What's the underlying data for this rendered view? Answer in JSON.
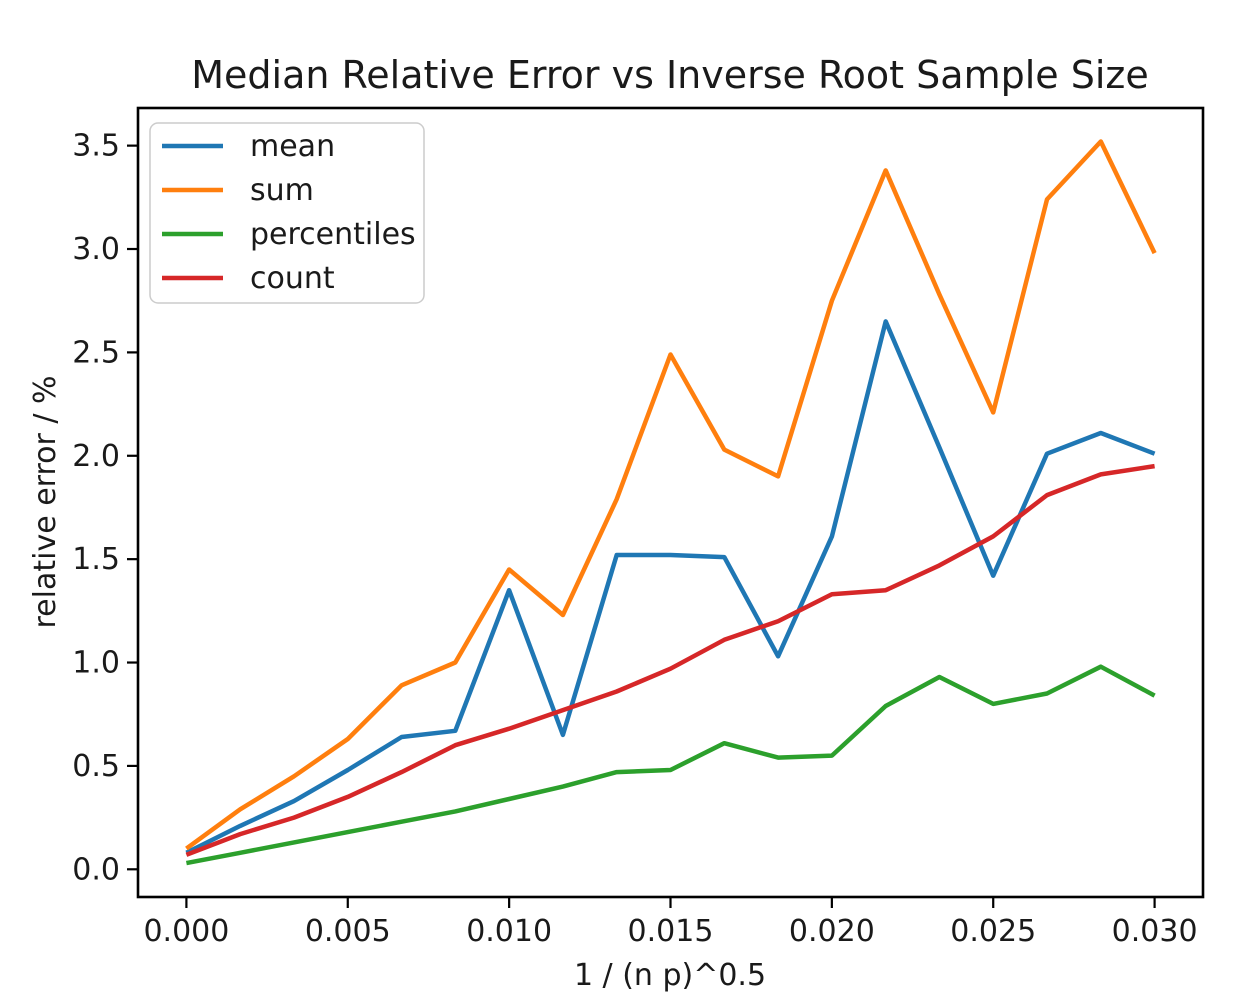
{
  "chart_data": {
    "type": "line",
    "title": "Median Relative Error vs Inverse Root Sample Size",
    "xlabel": "1 / (n p)^0.5",
    "ylabel": "relative error / %",
    "x": [
      0,
      0.0016667,
      0.0033333,
      0.005,
      0.0066667,
      0.0083333,
      0.01,
      0.0116667,
      0.0133333,
      0.015,
      0.0166667,
      0.0183333,
      0.02,
      0.0216667,
      0.0233333,
      0.025,
      0.0266667,
      0.0283333,
      0.03
    ],
    "series": [
      {
        "name": "mean",
        "color": "#1f77b4",
        "values": [
          0.08,
          0.21,
          0.33,
          0.48,
          0.64,
          0.67,
          1.35,
          0.65,
          1.52,
          1.52,
          1.51,
          1.03,
          1.61,
          2.65,
          2.04,
          1.42,
          2.01,
          2.11,
          2.01
        ]
      },
      {
        "name": "sum",
        "color": "#ff7f0e",
        "values": [
          0.1,
          0.29,
          0.45,
          0.63,
          0.89,
          1.0,
          1.45,
          1.23,
          1.79,
          2.49,
          2.03,
          1.9,
          2.75,
          3.38,
          2.78,
          2.21,
          3.24,
          3.52,
          2.98
        ]
      },
      {
        "name": "percentiles",
        "color": "#2ca02c",
        "values": [
          0.03,
          0.08,
          0.13,
          0.18,
          0.23,
          0.28,
          0.34,
          0.4,
          0.47,
          0.48,
          0.61,
          0.54,
          0.55,
          0.79,
          0.93,
          0.8,
          0.85,
          0.98,
          0.84
        ]
      },
      {
        "name": "count",
        "color": "#d62728",
        "values": [
          0.07,
          0.17,
          0.25,
          0.35,
          0.47,
          0.6,
          0.68,
          0.77,
          0.86,
          0.97,
          1.11,
          1.2,
          1.33,
          1.35,
          1.47,
          1.61,
          1.81,
          1.91,
          1.95
        ]
      }
    ],
    "xticks": {
      "values": [
        0,
        0.005,
        0.01,
        0.015,
        0.02,
        0.025,
        0.03
      ],
      "labels": [
        "0.000",
        "0.005",
        "0.010",
        "0.015",
        "0.020",
        "0.025",
        "0.030"
      ]
    },
    "yticks": {
      "values": [
        0,
        0.5,
        1.0,
        1.5,
        2.0,
        2.5,
        3.0,
        3.5
      ],
      "labels": [
        "0.0",
        "0.5",
        "1.0",
        "1.5",
        "2.0",
        "2.5",
        "3.0",
        "3.5"
      ]
    },
    "xlim": [
      -0.0015,
      0.0315
    ],
    "ylim": [
      -0.134,
      3.682
    ],
    "grid": false,
    "legend": {
      "position": "upper left",
      "entries": [
        "mean",
        "sum",
        "percentiles",
        "count"
      ]
    },
    "axis_color": "#000000",
    "background": "#ffffff"
  }
}
